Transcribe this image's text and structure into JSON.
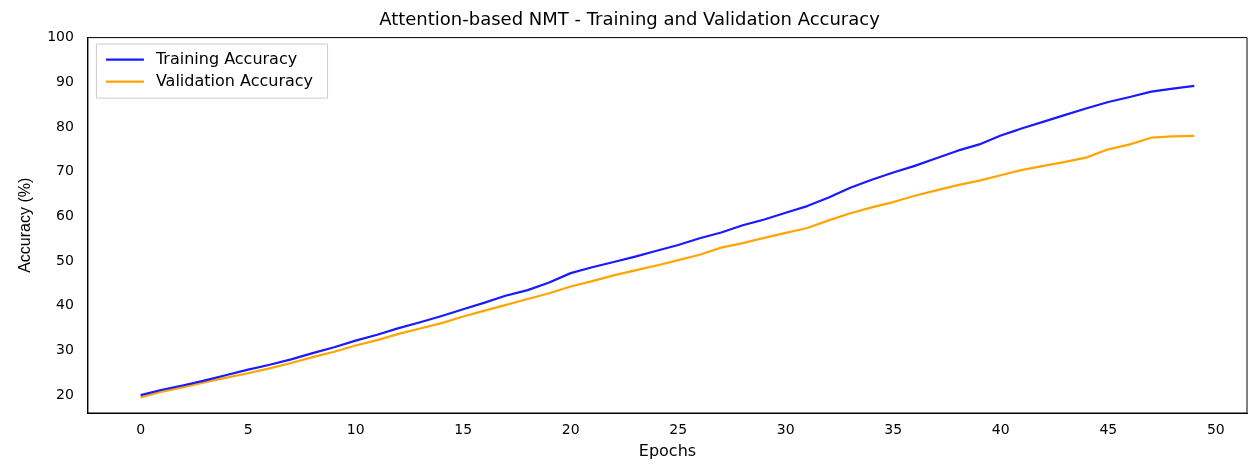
{
  "chart_data": {
    "type": "line",
    "title": "Attention-based NMT - Training and Validation Accuracy",
    "xlabel": "Epochs",
    "ylabel": "Accuracy (%)",
    "x": [
      0,
      1,
      2,
      3,
      4,
      5,
      6,
      7,
      8,
      9,
      10,
      11,
      12,
      13,
      14,
      15,
      16,
      17,
      18,
      19,
      20,
      21,
      22,
      23,
      24,
      25,
      26,
      27,
      28,
      29,
      30,
      31,
      32,
      33,
      34,
      35,
      36,
      37,
      38,
      39,
      40,
      41,
      42,
      43,
      44,
      45,
      46,
      47,
      48,
      49
    ],
    "series": [
      {
        "name": "Training Accuracy",
        "color": "#1a1aff",
        "values": [
          20,
          21.2,
          22.2,
          23.3,
          24.5,
          25.7,
          26.8,
          28,
          29.4,
          30.7,
          32.2,
          33.5,
          35,
          36.3,
          37.7,
          39.2,
          40.7,
          42.3,
          43.5,
          45.2,
          47.3,
          48.6,
          49.8,
          51,
          52.3,
          53.6,
          55.1,
          56.4,
          58,
          59.3,
          60.8,
          62.3,
          64.2,
          66.4,
          68.2,
          69.8,
          71.3,
          73,
          74.7,
          76.1,
          78.1,
          79.7,
          81.2,
          82.7,
          84.2,
          85.6,
          86.7,
          87.9,
          88.6,
          89.2
        ]
      },
      {
        "name": "Validation Accuracy",
        "color": "#ffa500",
        "values": [
          19.5,
          20.8,
          21.8,
          22.9,
          23.9,
          24.9,
          26,
          27.2,
          28.5,
          29.7,
          31.1,
          32.3,
          33.7,
          34.9,
          36.1,
          37.6,
          38.9,
          40.2,
          41.5,
          42.8,
          44.3,
          45.5,
          46.8,
          47.9,
          49,
          50.2,
          51.4,
          53,
          54,
          55.2,
          56.3,
          57.4,
          59.1,
          60.7,
          62,
          63.2,
          64.6,
          65.8,
          67,
          68,
          69.2,
          70.4,
          71.3,
          72.2,
          73.2,
          75,
          76.1,
          77.6,
          77.9,
          78
        ]
      }
    ],
    "xlim": [
      -2.45,
      51.45
    ],
    "xticks": [
      0,
      5,
      10,
      15,
      20,
      25,
      30,
      35,
      40,
      45,
      50
    ],
    "ylim": [
      16,
      100
    ],
    "yticks": [
      20,
      30,
      40,
      50,
      60,
      70,
      80,
      90,
      100
    ],
    "grid": false,
    "legend": "top left",
    "marker": "none",
    "line_style": "solid"
  }
}
